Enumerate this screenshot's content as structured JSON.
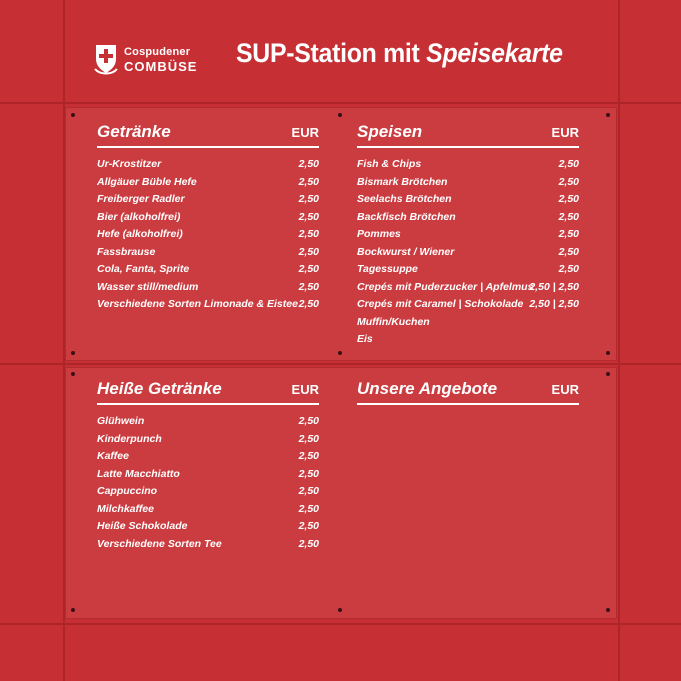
{
  "header": {
    "logo_top": "Cospudener",
    "logo_main": "COMBÜSE",
    "title_main": "SUP-Station mit",
    "title_accent": "Speisekarte"
  },
  "sections": {
    "getraenke": {
      "title": "Getränke",
      "currency": "EUR",
      "items": [
        {
          "name": "Ur-Krostitzer",
          "price": "2,50"
        },
        {
          "name": "Allgäuer Büble Hefe",
          "price": "2,50"
        },
        {
          "name": "Freiberger Radler",
          "price": "2,50"
        },
        {
          "name": "Bier (alkoholfrei)",
          "price": "2,50"
        },
        {
          "name": "Hefe (alkoholfrei)",
          "price": "2,50"
        },
        {
          "name": "Fassbrause",
          "price": "2,50"
        },
        {
          "name": "Cola, Fanta, Sprite",
          "price": "2,50"
        },
        {
          "name": "Wasser still/medium",
          "price": "2,50"
        },
        {
          "name": "Verschiedene Sorten Limonade & Eistee",
          "price": "2,50"
        }
      ]
    },
    "speisen": {
      "title": "Speisen",
      "currency": "EUR",
      "items": [
        {
          "name": "Fish & Chips",
          "price": "2,50"
        },
        {
          "name": "Bismark Brötchen",
          "price": "2,50"
        },
        {
          "name": "Seelachs Brötchen",
          "price": "2,50"
        },
        {
          "name": "Backfisch Brötchen",
          "price": "2,50"
        },
        {
          "name": "Pommes",
          "price": "2,50"
        },
        {
          "name": "Bockwurst / Wiener",
          "price": "2,50"
        },
        {
          "name": "Tagessuppe",
          "price": "2,50"
        },
        {
          "name": "Crepés mit Puderzucker | Apfelmus",
          "price": "2,50 | 2,50"
        },
        {
          "name": "Crepés mit Caramel | Schokolade",
          "price": "2,50 | 2,50"
        },
        {
          "name": "Muffin/Kuchen",
          "price": ""
        },
        {
          "name": "Eis",
          "price": ""
        }
      ]
    },
    "heisse": {
      "title": "Heiße Getränke",
      "currency": "EUR",
      "items": [
        {
          "name": "Glühwein",
          "price": "2,50"
        },
        {
          "name": "Kinderpunch",
          "price": "2,50"
        },
        {
          "name": "Kaffee",
          "price": "2,50"
        },
        {
          "name": "Latte Macchiatto",
          "price": "2,50"
        },
        {
          "name": "Cappuccino",
          "price": "2,50"
        },
        {
          "name": "Milchkaffee",
          "price": "2,50"
        },
        {
          "name": "Heiße Schokolade",
          "price": "2,50"
        },
        {
          "name": "Verschiedene Sorten Tee",
          "price": "2,50"
        }
      ]
    },
    "angebote": {
      "title": "Unsere Angebote",
      "currency": "EUR",
      "items": []
    }
  },
  "colors": {
    "background": "#c62f34",
    "panel": "#cb3c40",
    "text": "#ffffff"
  },
  "icons": {
    "logo": "shield-cross-icon"
  }
}
